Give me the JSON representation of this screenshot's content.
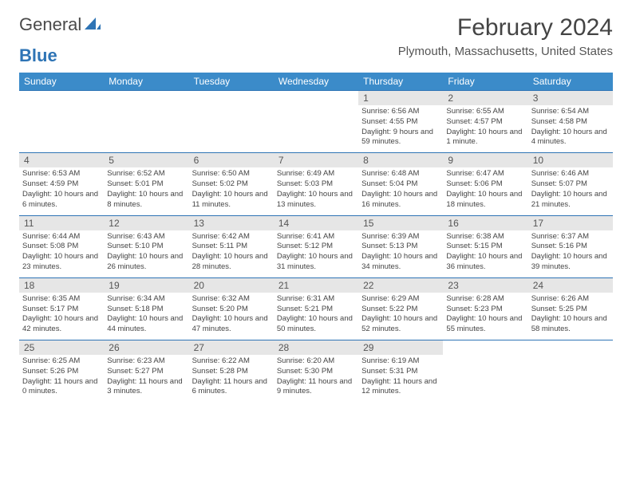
{
  "logo": {
    "textA": "General",
    "textB": "Blue"
  },
  "title": "February 2024",
  "location": "Plymouth, Massachusetts, United States",
  "colors": {
    "header_bg": "#3b8bc9",
    "header_text": "#ffffff",
    "accent_border": "#2e74b5",
    "daynum_bg": "#e6e6e6",
    "body_text": "#444444",
    "logo_gray": "#4a4a4a",
    "logo_blue": "#2e74b5"
  },
  "layout": {
    "columns": 7,
    "rows": 5,
    "first_weekday_index": 4
  },
  "weekdays": [
    "Sunday",
    "Monday",
    "Tuesday",
    "Wednesday",
    "Thursday",
    "Friday",
    "Saturday"
  ],
  "weeks": [
    [
      null,
      null,
      null,
      null,
      {
        "n": "1",
        "sr": "6:56 AM",
        "ss": "4:55 PM",
        "dl": "9 hours and 59 minutes."
      },
      {
        "n": "2",
        "sr": "6:55 AM",
        "ss": "4:57 PM",
        "dl": "10 hours and 1 minute."
      },
      {
        "n": "3",
        "sr": "6:54 AM",
        "ss": "4:58 PM",
        "dl": "10 hours and 4 minutes."
      }
    ],
    [
      {
        "n": "4",
        "sr": "6:53 AM",
        "ss": "4:59 PM",
        "dl": "10 hours and 6 minutes."
      },
      {
        "n": "5",
        "sr": "6:52 AM",
        "ss": "5:01 PM",
        "dl": "10 hours and 8 minutes."
      },
      {
        "n": "6",
        "sr": "6:50 AM",
        "ss": "5:02 PM",
        "dl": "10 hours and 11 minutes."
      },
      {
        "n": "7",
        "sr": "6:49 AM",
        "ss": "5:03 PM",
        "dl": "10 hours and 13 minutes."
      },
      {
        "n": "8",
        "sr": "6:48 AM",
        "ss": "5:04 PM",
        "dl": "10 hours and 16 minutes."
      },
      {
        "n": "9",
        "sr": "6:47 AM",
        "ss": "5:06 PM",
        "dl": "10 hours and 18 minutes."
      },
      {
        "n": "10",
        "sr": "6:46 AM",
        "ss": "5:07 PM",
        "dl": "10 hours and 21 minutes."
      }
    ],
    [
      {
        "n": "11",
        "sr": "6:44 AM",
        "ss": "5:08 PM",
        "dl": "10 hours and 23 minutes."
      },
      {
        "n": "12",
        "sr": "6:43 AM",
        "ss": "5:10 PM",
        "dl": "10 hours and 26 minutes."
      },
      {
        "n": "13",
        "sr": "6:42 AM",
        "ss": "5:11 PM",
        "dl": "10 hours and 28 minutes."
      },
      {
        "n": "14",
        "sr": "6:41 AM",
        "ss": "5:12 PM",
        "dl": "10 hours and 31 minutes."
      },
      {
        "n": "15",
        "sr": "6:39 AM",
        "ss": "5:13 PM",
        "dl": "10 hours and 34 minutes."
      },
      {
        "n": "16",
        "sr": "6:38 AM",
        "ss": "5:15 PM",
        "dl": "10 hours and 36 minutes."
      },
      {
        "n": "17",
        "sr": "6:37 AM",
        "ss": "5:16 PM",
        "dl": "10 hours and 39 minutes."
      }
    ],
    [
      {
        "n": "18",
        "sr": "6:35 AM",
        "ss": "5:17 PM",
        "dl": "10 hours and 42 minutes."
      },
      {
        "n": "19",
        "sr": "6:34 AM",
        "ss": "5:18 PM",
        "dl": "10 hours and 44 minutes."
      },
      {
        "n": "20",
        "sr": "6:32 AM",
        "ss": "5:20 PM",
        "dl": "10 hours and 47 minutes."
      },
      {
        "n": "21",
        "sr": "6:31 AM",
        "ss": "5:21 PM",
        "dl": "10 hours and 50 minutes."
      },
      {
        "n": "22",
        "sr": "6:29 AM",
        "ss": "5:22 PM",
        "dl": "10 hours and 52 minutes."
      },
      {
        "n": "23",
        "sr": "6:28 AM",
        "ss": "5:23 PM",
        "dl": "10 hours and 55 minutes."
      },
      {
        "n": "24",
        "sr": "6:26 AM",
        "ss": "5:25 PM",
        "dl": "10 hours and 58 minutes."
      }
    ],
    [
      {
        "n": "25",
        "sr": "6:25 AM",
        "ss": "5:26 PM",
        "dl": "11 hours and 0 minutes."
      },
      {
        "n": "26",
        "sr": "6:23 AM",
        "ss": "5:27 PM",
        "dl": "11 hours and 3 minutes."
      },
      {
        "n": "27",
        "sr": "6:22 AM",
        "ss": "5:28 PM",
        "dl": "11 hours and 6 minutes."
      },
      {
        "n": "28",
        "sr": "6:20 AM",
        "ss": "5:30 PM",
        "dl": "11 hours and 9 minutes."
      },
      {
        "n": "29",
        "sr": "6:19 AM",
        "ss": "5:31 PM",
        "dl": "11 hours and 12 minutes."
      },
      null,
      null
    ]
  ],
  "labels": {
    "sunrise": "Sunrise:",
    "sunset": "Sunset:",
    "daylight": "Daylight:"
  }
}
